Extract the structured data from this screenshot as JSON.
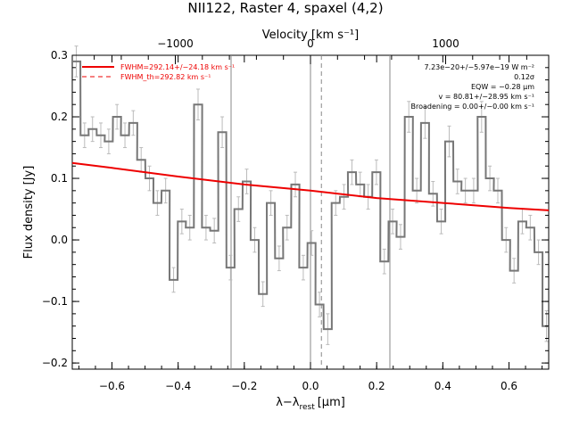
{
  "chart_data": {
    "type": "line",
    "title": "NII122, Raster 4, spaxel (4,2)",
    "xlabel_main": "λ−λ",
    "xlabel_sub": "rest",
    "xlabel_unit": "[μm]",
    "ylabel": "Flux density [Jy]",
    "top_axis_label": "Velocity [km s⁻¹]",
    "xlim": [
      -0.72,
      0.72
    ],
    "ylim": [
      -0.21,
      0.3
    ],
    "top_axis": {
      "ticks": [
        -1000,
        0,
        1000
      ],
      "tick_labels": [
        "−1000",
        "0",
        "1000"
      ],
      "vel_per_um": 2448
    },
    "x_ticks": [
      -0.6,
      -0.4,
      -0.2,
      0.0,
      0.2,
      0.4,
      0.6
    ],
    "x_tick_labels": [
      "−0.6",
      "−0.4",
      "−0.2",
      "0.0",
      "0.2",
      "0.4",
      "0.6"
    ],
    "y_ticks": [
      -0.2,
      -0.1,
      0.0,
      0.1,
      0.2,
      0.3
    ],
    "y_tick_labels": [
      "−0.2",
      "−0.1",
      "0.0",
      "0.1",
      "0.2",
      "0.3"
    ],
    "bin_width": 0.0245,
    "spectrum": {
      "name": "data",
      "color": "#777777",
      "x": [
        -0.72,
        -0.695,
        -0.671,
        -0.646,
        -0.622,
        -0.597,
        -0.573,
        -0.548,
        -0.524,
        -0.499,
        -0.475,
        -0.45,
        -0.426,
        -0.401,
        -0.377,
        -0.352,
        -0.328,
        -0.303,
        -0.279,
        -0.254,
        -0.23,
        -0.205,
        -0.181,
        -0.156,
        -0.132,
        -0.107,
        -0.083,
        -0.058,
        -0.034,
        -0.009,
        0.015,
        0.04,
        0.064,
        0.089,
        0.113,
        0.138,
        0.162,
        0.187,
        0.211,
        0.236,
        0.26,
        0.285,
        0.309,
        0.334,
        0.358,
        0.383,
        0.407,
        0.432,
        0.456,
        0.481,
        0.505,
        0.53,
        0.554,
        0.579,
        0.603,
        0.628,
        0.652,
        0.677,
        0.701
      ],
      "y": [
        0.29,
        0.17,
        0.18,
        0.17,
        0.16,
        0.2,
        0.17,
        0.19,
        0.13,
        0.1,
        0.06,
        0.08,
        -0.065,
        0.03,
        0.02,
        0.22,
        0.02,
        0.015,
        0.175,
        -0.045,
        0.05,
        0.095,
        0.0,
        -0.088,
        0.06,
        -0.03,
        0.02,
        0.09,
        -0.045,
        -0.005,
        -0.105,
        -0.145,
        0.06,
        0.07,
        0.11,
        0.09,
        0.07,
        0.11,
        -0.035,
        0.03,
        0.005,
        0.2,
        0.08,
        0.19,
        0.075,
        0.03,
        0.16,
        0.095,
        0.08,
        0.08,
        0.2,
        0.1,
        0.08,
        -0.0,
        -0.05,
        0.03,
        0.02,
        -0.02,
        -0.14
      ],
      "errors": [
        0.025,
        0.02,
        0.02,
        0.02,
        0.02,
        0.02,
        0.02,
        0.02,
        0.02,
        0.02,
        0.02,
        0.02,
        0.02,
        0.02,
        0.02,
        0.025,
        0.02,
        0.02,
        0.025,
        0.02,
        0.02,
        0.02,
        0.02,
        0.02,
        0.02,
        0.02,
        0.02,
        0.02,
        0.02,
        0.02,
        0.02,
        0.025,
        0.02,
        0.02,
        0.02,
        0.02,
        0.02,
        0.02,
        0.02,
        0.02,
        0.02,
        0.025,
        0.02,
        0.025,
        0.02,
        0.02,
        0.025,
        0.02,
        0.02,
        0.02,
        0.025,
        0.02,
        0.02,
        0.02,
        0.02,
        0.02,
        0.02,
        0.02,
        0.025
      ]
    },
    "fit": {
      "name": "FWHM=292.14+/−24.18 km s⁻¹",
      "color": "#ee0000",
      "x": [
        -0.72,
        -0.6,
        -0.4,
        -0.2,
        0.0,
        0.2,
        0.4,
        0.6,
        0.72
      ],
      "y": [
        0.125,
        0.117,
        0.103,
        0.09,
        0.08,
        0.068,
        0.06,
        0.052,
        0.048
      ]
    },
    "fit_th_name": "FWHM_th=292.82 km s⁻¹",
    "vlines_solid": [
      -0.24,
      0.0,
      0.24
    ],
    "vline_dashed": 0.033,
    "annotations": [
      "7.23e−20+/−5.97e−19 W m⁻²",
      "0.12σ",
      "EQW = −0.28 μm",
      "v = 80.81+/−28.95 km s⁻¹",
      "Broadening = 0.00+/−0.00 km s⁻¹"
    ]
  }
}
